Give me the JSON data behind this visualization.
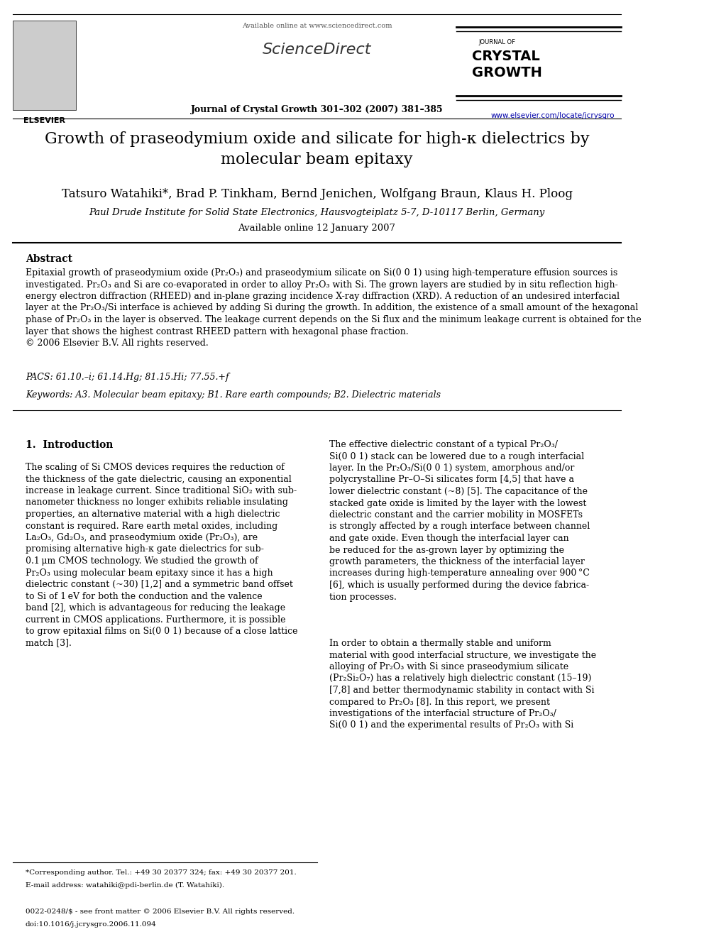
{
  "page_width": 9.92,
  "page_height": 13.23,
  "bg_color": "#ffffff",
  "header": {
    "available_online": "Available online at www.sciencedirect.com",
    "journal_line": "Journal of Crystal Growth 301–302 (2007) 381–385",
    "journal_name_line1": "JOURNAL OF",
    "journal_name_line2": "CRYSTAL",
    "journal_name_line3": "GROWTH",
    "url": "www.elsevier.com/locate/jcrysgro"
  },
  "title": "Growth of praseodymium oxide and silicate for high-κ dielectrics by\nmolecular beam epitaxy",
  "authors": "Tatsuro Watahiki*, Brad P. Tinkham, Bernd Jenichen, Wolfgang Braun, Klaus H. Ploog",
  "affiliation": "Paul Drude Institute for Solid State Electronics, Hausvogteiplatz 5-7, D-10117 Berlin, Germany",
  "available_online_date": "Available online 12 January 2007",
  "abstract_heading": "Abstract",
  "abstract_text": "Epitaxial growth of praseodymium oxide (Pr₂O₃) and praseodymium silicate on Si(0 0 1) using high-temperature effusion sources is\ninvestigated. Pr₂O₃ and Si are co-evaporated in order to alloy Pr₂O₃ with Si. The grown layers are studied by in situ reflection high-\nenergy electron diffraction (RHEED) and in-plane grazing incidence X-ray diffraction (XRD). A reduction of an undesired interfacial\nlayer at the Pr₂O₃/Si interface is achieved by adding Si during the growth. In addition, the existence of a small amount of the hexagonal\nphase of Pr₂O₃ in the layer is observed. The leakage current depends on the Si flux and the minimum leakage current is obtained for the\nlayer that shows the highest contrast RHEED pattern with hexagonal phase fraction.\n© 2006 Elsevier B.V. All rights reserved.",
  "pacs": "PACS: 61.10.–i; 61.14.Hg; 81.15.Hi; 77.55.+f",
  "keywords": "Keywords: A3. Molecular beam epitaxy; B1. Rare earth compounds; B2. Dielectric materials",
  "section1_heading": "1.  Introduction",
  "col1_para1": "The scaling of Si CMOS devices requires the reduction of\nthe thickness of the gate dielectric, causing an exponential\nincrease in leakage current. Since traditional SiO₂ with sub-\nnanometer thickness no longer exhibits reliable insulating\nproperties, an alternative material with a high dielectric\nconstant is required. Rare earth metal oxides, including\nLa₂O₃, Gd₂O₃, and praseodymium oxide (Pr₂O₃), are\npromising alternative high-κ gate dielectrics for sub-\n0.1 μm CMOS technology. We studied the growth of\nPr₂O₃ using molecular beam epitaxy since it has a high\ndielectric constant (~30) [1,2] and a symmetric band offset\nto Si of 1 eV for both the conduction and the valence\nband [2], which is advantageous for reducing the leakage\ncurrent in CMOS applications. Furthermore, it is possible\nto grow epitaxial films on Si(0 0 1) because of a close lattice\nmatch [3].",
  "col2_para1": "The effective dielectric constant of a typical Pr₂O₃/\nSi(0 0 1) stack can be lowered due to a rough interfacial\nlayer. In the Pr₂O₃/Si(0 0 1) system, amorphous and/or\npolycrystalline Pr–O–Si silicates form [4,5] that have a\nlower dielectric constant (~8) [5]. The capacitance of the\nstacked gate oxide is limited by the layer with the lowest\ndielectric constant and the carrier mobility in MOSFETs\nis strongly affected by a rough interface between channel\nand gate oxide. Even though the interfacial layer can\nbe reduced for the as-grown layer by optimizing the\ngrowth parameters, the thickness of the interfacial layer\nincreases during high-temperature annealing over 900 °C\n[6], which is usually performed during the device fabrica-\ntion processes.",
  "col2_para2": "In order to obtain a thermally stable and uniform\nmaterial with good interfacial structure, we investigate the\nalloying of Pr₂O₃ with Si since praseodymium silicate\n(Pr₂Si₂O₇) has a relatively high dielectric constant (15–19)\n[7,8] and better thermodynamic stability in contact with Si\ncompared to Pr₂O₃ [8]. In this report, we present\ninvestigations of the interfacial structure of Pr₂O₃/\nSi(0 0 1) and the experimental results of Pr₂O₃ with Si",
  "footnote_asterisk": "*Corresponding author. Tel.: +49 30 20377 324; fax: +49 30 20377 201.",
  "footnote_email": "E-mail address: watahiki@pdi-berlin.de (T. Watahiki).",
  "footer_issn": "0022-0248/$ - see front matter © 2006 Elsevier B.V. All rights reserved.",
  "footer_doi": "doi:10.1016/j.jcrysgro.2006.11.094"
}
